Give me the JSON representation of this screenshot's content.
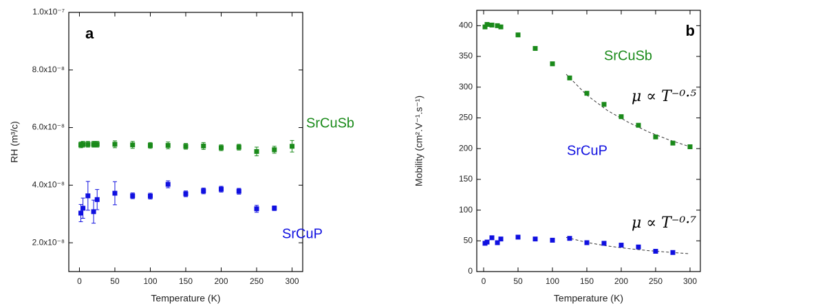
{
  "chart_data": [
    {
      "type": "scatter",
      "panel_label": "a",
      "x_label": "Temperature (K)",
      "y_label": "RH (m³/c)",
      "xlim": [
        -15,
        315
      ],
      "ylim": [
        1e-08,
        1e-07
      ],
      "xticks": [
        0,
        50,
        100,
        150,
        200,
        250,
        300
      ],
      "yticks": [
        {
          "value": 2e-08,
          "label": "2.0x10⁻⁸"
        },
        {
          "value": 4e-08,
          "label": "4.0x10⁻⁸"
        },
        {
          "value": 6e-08,
          "label": "6.0x10⁻⁸"
        },
        {
          "value": 8e-08,
          "label": "8.0x10⁻⁸"
        },
        {
          "value": 1e-07,
          "label": "1.0x10⁻⁷"
        }
      ],
      "series": [
        {
          "name": "SrCuSb",
          "color": "#1a8a1a",
          "x": [
            2,
            5,
            12,
            20,
            22,
            25,
            50,
            75,
            100,
            125,
            150,
            175,
            200,
            225,
            250,
            275,
            300
          ],
          "values": [
            5.4e-08,
            5.42e-08,
            5.42e-08,
            5.42e-08,
            5.42e-08,
            5.42e-08,
            5.42e-08,
            5.4e-08,
            5.38e-08,
            5.38e-08,
            5.35e-08,
            5.36e-08,
            5.3e-08,
            5.32e-08,
            5.17e-08,
            5.23e-08,
            5.35e-08
          ],
          "error": [
            1e-09,
            1e-09,
            1e-09,
            1e-09,
            1e-09,
            1e-09,
            1.2e-09,
            1.2e-09,
            1e-09,
            1.2e-09,
            1e-09,
            1.2e-09,
            1e-09,
            1e-09,
            1.5e-09,
            1.2e-09,
            2e-09
          ]
        },
        {
          "name": "SrCuP",
          "color": "#1010e0",
          "x": [
            2,
            5,
            12,
            20,
            25,
            50,
            75,
            100,
            125,
            150,
            175,
            200,
            225,
            250,
            275
          ],
          "values": [
            3.03e-08,
            3.2e-08,
            3.63e-08,
            3.08e-08,
            3.5e-08,
            3.72e-08,
            3.63e-08,
            3.62e-08,
            4.03e-08,
            3.7e-08,
            3.8e-08,
            3.86e-08,
            3.79e-08,
            3.18e-08,
            3.2e-08
          ],
          "error": [
            3e-09,
            3.5e-09,
            5e-09,
            4e-09,
            3.5e-09,
            4e-09,
            1e-09,
            1e-09,
            1.2e-09,
            1e-09,
            1e-09,
            1e-09,
            1e-09,
            1.2e-09,
            8e-10
          ]
        }
      ]
    },
    {
      "type": "scatter",
      "panel_label": "b",
      "x_label": "Temperature (K)",
      "y_label": "Mobility (cm².V⁻¹.s⁻¹)",
      "xlim": [
        -10,
        315
      ],
      "ylim": [
        0,
        425
      ],
      "xticks": [
        0,
        50,
        100,
        150,
        200,
        250,
        300
      ],
      "yticks": [
        0,
        50,
        100,
        150,
        200,
        250,
        300,
        350,
        400
      ],
      "series": [
        {
          "name": "SrCuSb",
          "color": "#1a8a1a",
          "x": [
            2,
            5,
            12,
            20,
            25,
            50,
            75,
            100,
            125,
            150,
            175,
            200,
            225,
            250,
            275,
            300
          ],
          "values": [
            398,
            402,
            401,
            400,
            398,
            385,
            363,
            338,
            315,
            290,
            272,
            252,
            238,
            219,
            209,
            203
          ]
        },
        {
          "name": "SrCuP",
          "color": "#1010e0",
          "x": [
            2,
            5,
            12,
            20,
            25,
            50,
            75,
            100,
            125,
            150,
            175,
            200,
            225,
            250,
            275
          ],
          "values": [
            46,
            48,
            55,
            47,
            53,
            56,
            53,
            51,
            54,
            47,
            46,
            43,
            40,
            33,
            31
          ]
        }
      ],
      "fits": [
        {
          "name": "μ ∝ T⁻⁰·⁵",
          "x": [
            120,
            150,
            180,
            210,
            240,
            270,
            300
          ],
          "values": [
            321,
            287,
            262,
            243,
            227,
            214,
            203
          ]
        },
        {
          "name": "μ ∝ T⁻⁰·⁷",
          "x": [
            120,
            150,
            180,
            210,
            240,
            270,
            300
          ],
          "values": [
            55.5,
            47.4,
            41.6,
            37.4,
            34.0,
            31.4,
            29
          ]
        }
      ]
    }
  ]
}
